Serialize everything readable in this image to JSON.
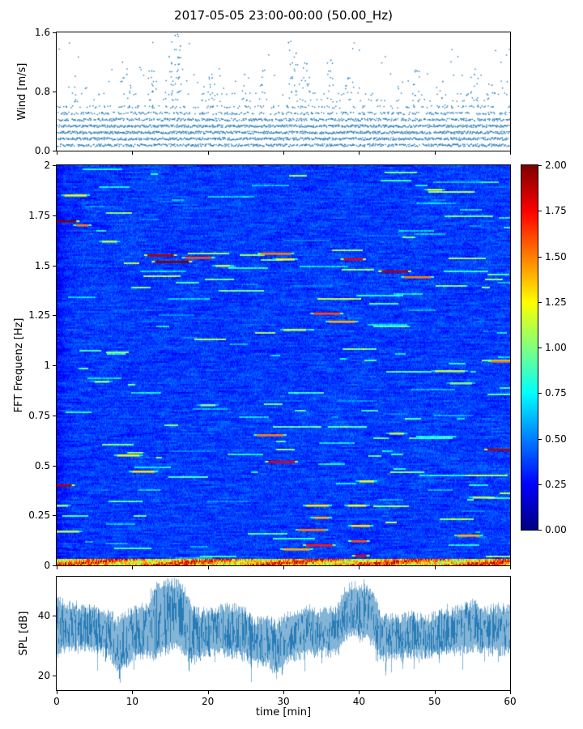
{
  "title": "2017-05-05 23:00-00:00 (50.00_Hz)",
  "xlabel": "time [min]",
  "x_range": [
    0,
    60
  ],
  "x_ticks": [
    0,
    10,
    20,
    30,
    40,
    50,
    60
  ],
  "chart_data": [
    {
      "type": "scatter",
      "name": "wind-speed",
      "ylabel": "Wind [m/s]",
      "ylim": [
        0,
        1.6
      ],
      "yticks": [
        0.0,
        0.8,
        1.6
      ],
      "ytick_labels": [
        "0.0",
        "0.8",
        "1.6"
      ],
      "color": "#1f77b4",
      "marker": "point",
      "seed": 7,
      "quantization": 0.09,
      "gusts": [
        {
          "t": 9.2,
          "peak": 1.05
        },
        {
          "t": 12.5,
          "peak": 1.1
        },
        {
          "t": 14.8,
          "peak": 1.3
        },
        {
          "t": 15.6,
          "peak": 1.6
        },
        {
          "t": 16.3,
          "peak": 1.45
        },
        {
          "t": 20.5,
          "peak": 1.0
        },
        {
          "t": 24.8,
          "peak": 1.05
        },
        {
          "t": 27.2,
          "peak": 1.1
        },
        {
          "t": 30.6,
          "peak": 1.5
        },
        {
          "t": 31.6,
          "peak": 1.35
        },
        {
          "t": 33.0,
          "peak": 1.2
        },
        {
          "t": 36.2,
          "peak": 1.25
        },
        {
          "t": 38.5,
          "peak": 1.0
        },
        {
          "t": 47.6,
          "peak": 1.1
        },
        {
          "t": 51.0,
          "peak": 0.95
        },
        {
          "t": 55.2,
          "peak": 1.05
        },
        {
          "t": 57.5,
          "peak": 0.9
        }
      ]
    },
    {
      "type": "heatmap",
      "name": "fft-spectrogram",
      "ylabel": "FFT Frequenz [Hz]",
      "ylim": [
        0,
        2
      ],
      "yticks": [
        0,
        0.25,
        0.5,
        0.75,
        1,
        1.25,
        1.5,
        1.75,
        2
      ],
      "ytick_labels": [
        "0",
        "0.25",
        "0.5",
        "0.75",
        "1",
        "1.25",
        "1.5",
        "1.75",
        "2"
      ],
      "colormap": "jet",
      "clim": [
        0,
        2
      ],
      "seed": 3,
      "colorbar": {
        "ticks": [
          0,
          0.25,
          0.5,
          0.75,
          1,
          1.25,
          1.5,
          1.75,
          2
        ],
        "tick_labels": [
          "0.00",
          "0.25",
          "0.50",
          "0.75",
          "1.00",
          "1.25",
          "1.50",
          "1.75",
          "2.00"
        ]
      },
      "streaks": [
        {
          "t": [
            1,
            4
          ],
          "f": 1.85,
          "v": 1.2
        },
        {
          "t": [
            0,
            2.6
          ],
          "f": 1.72,
          "v": 2.0
        },
        {
          "t": [
            2.6,
            4.2
          ],
          "f": 1.7,
          "v": 1.5
        },
        {
          "t": [
            6,
            8
          ],
          "f": 1.62,
          "v": 1.1
        },
        {
          "t": [
            12,
            15.5
          ],
          "f": 1.55,
          "v": 1.9
        },
        {
          "t": [
            13,
            17.5
          ],
          "f": 1.52,
          "v": 2.0
        },
        {
          "t": [
            17,
            20.5
          ],
          "f": 1.54,
          "v": 1.6
        },
        {
          "t": [
            21,
            23
          ],
          "f": 1.5,
          "v": 1.1
        },
        {
          "t": [
            27,
            31
          ],
          "f": 1.56,
          "v": 1.5
        },
        {
          "t": [
            29,
            31.5
          ],
          "f": 1.53,
          "v": 1.2
        },
        {
          "t": [
            38,
            40.5
          ],
          "f": 1.53,
          "v": 1.8
        },
        {
          "t": [
            43,
            46.5
          ],
          "f": 1.47,
          "v": 1.9
        },
        {
          "t": [
            46,
            49.5
          ],
          "f": 1.44,
          "v": 1.5
        },
        {
          "t": [
            49,
            51
          ],
          "f": 1.88,
          "v": 1.1
        },
        {
          "t": [
            34,
            37.5
          ],
          "f": 1.26,
          "v": 1.6
        },
        {
          "t": [
            36,
            39.5
          ],
          "f": 1.22,
          "v": 1.4
        },
        {
          "t": [
            30,
            33
          ],
          "f": 1.18,
          "v": 1.1
        },
        {
          "t": [
            57.5,
            60
          ],
          "f": 1.02,
          "v": 1.5
        },
        {
          "t": [
            50,
            54
          ],
          "f": 0.97,
          "v": 1.1
        },
        {
          "t": [
            52,
            55
          ],
          "f": 0.91,
          "v": 1.0
        },
        {
          "t": [
            5,
            7
          ],
          "f": 0.92,
          "v": 1.0
        },
        {
          "t": [
            19,
            21
          ],
          "f": 0.8,
          "v": 1.0
        },
        {
          "t": [
            26.5,
            30
          ],
          "f": 0.65,
          "v": 1.5
        },
        {
          "t": [
            44,
            46
          ],
          "f": 0.66,
          "v": 1.1
        },
        {
          "t": [
            28,
            31.5
          ],
          "f": 0.52,
          "v": 1.8
        },
        {
          "t": [
            8,
            11
          ],
          "f": 0.55,
          "v": 1.2
        },
        {
          "t": [
            10,
            13
          ],
          "f": 0.47,
          "v": 1.3
        },
        {
          "t": [
            0,
            2
          ],
          "f": 0.4,
          "v": 1.9
        },
        {
          "t": [
            57,
            60
          ],
          "f": 0.58,
          "v": 1.9
        },
        {
          "t": [
            55,
            58
          ],
          "f": 0.34,
          "v": 1.1
        },
        {
          "t": [
            33,
            36
          ],
          "f": 0.3,
          "v": 1.3
        },
        {
          "t": [
            38.5,
            41
          ],
          "f": 0.3,
          "v": 1.2
        },
        {
          "t": [
            32,
            35.5
          ],
          "f": 0.18,
          "v": 1.5
        },
        {
          "t": [
            33,
            36.5
          ],
          "f": 0.1,
          "v": 1.7
        },
        {
          "t": [
            34,
            36
          ],
          "f": 0.24,
          "v": 1.4
        },
        {
          "t": [
            53,
            56
          ],
          "f": 0.15,
          "v": 1.4
        },
        {
          "t": [
            30,
            33.5
          ],
          "f": 0.08,
          "v": 1.4
        },
        {
          "t": [
            39,
            41
          ],
          "f": 0.12,
          "v": 1.6
        },
        {
          "t": [
            39,
            41.5
          ],
          "f": 0.2,
          "v": 1.3
        },
        {
          "t": [
            40,
            42
          ],
          "f": 0.42,
          "v": 1.2
        },
        {
          "t": [
            39.5,
            41
          ],
          "f": 0.05,
          "v": 1.8
        },
        {
          "t": [
            0,
            3
          ],
          "f": 0.17,
          "v": 1.1
        },
        {
          "t": [
            0,
            1.5
          ],
          "f": 0.3,
          "v": 1.0
        }
      ]
    },
    {
      "type": "line",
      "name": "spl",
      "ylabel": "SPL [dB]",
      "ylim": [
        15,
        53
      ],
      "yticks": [
        20,
        40
      ],
      "ytick_labels": [
        "20",
        "40"
      ],
      "color": "#1f77b4",
      "seed": 11,
      "envelope": {
        "t": [
          0,
          1,
          3,
          5,
          7,
          8,
          9,
          10,
          12,
          13,
          14,
          16,
          17,
          18,
          19,
          21,
          23,
          25,
          26,
          28,
          29,
          31,
          33,
          35,
          37,
          38,
          39,
          41,
          42,
          43,
          45,
          47,
          49,
          51,
          53,
          55,
          57,
          59,
          60
        ],
        "hi": [
          46,
          44,
          43,
          42,
          41,
          38,
          40,
          42,
          43,
          50,
          51,
          51,
          48,
          42,
          41,
          42,
          43,
          41,
          38,
          39,
          37,
          41,
          42,
          41,
          42,
          48,
          50,
          49,
          47,
          40,
          39,
          40,
          39,
          41,
          42,
          44,
          42,
          43,
          42
        ],
        "lo": [
          27,
          29,
          30,
          29,
          27,
          22,
          24,
          26,
          27,
          26,
          28,
          30,
          27,
          25,
          26,
          28,
          27,
          26,
          24,
          24,
          20,
          26,
          27,
          28,
          27,
          32,
          34,
          33,
          30,
          26,
          26,
          27,
          27,
          28,
          28,
          29,
          28,
          28,
          28
        ]
      }
    }
  ]
}
